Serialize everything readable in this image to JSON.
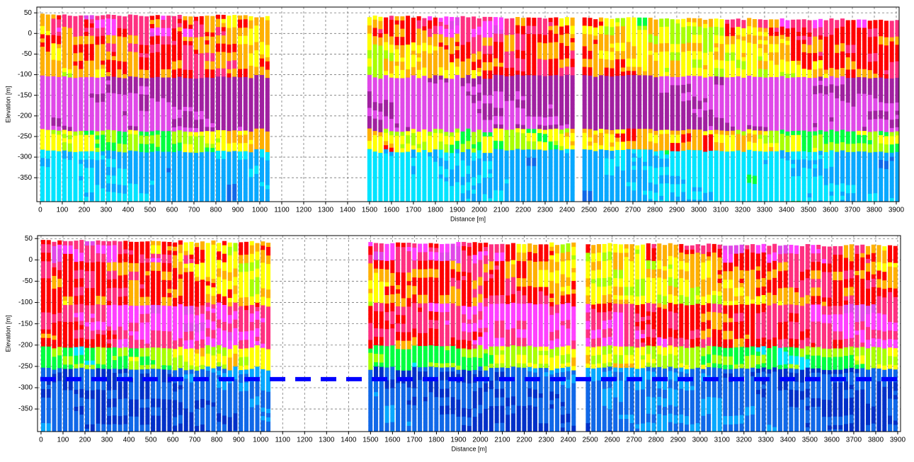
{
  "chart_data": [
    {
      "type": "section",
      "xlabel": "Distance [m]",
      "ylabel": "Elevation [m]",
      "xlim": [
        -16,
        3913
      ],
      "ylim": [
        -408,
        64
      ],
      "xticks": [
        0,
        100,
        200,
        300,
        400,
        500,
        600,
        700,
        800,
        900,
        1000,
        1100,
        1200,
        1300,
        1400,
        1500,
        1600,
        1700,
        1800,
        1900,
        2000,
        2100,
        2200,
        2300,
        2400,
        2500,
        2600,
        2700,
        2800,
        2900,
        3000,
        3100,
        3200,
        3300,
        3400,
        3500,
        3600,
        3700,
        3800,
        3900
      ],
      "yticks": [
        -350,
        -300,
        -250,
        -200,
        -150,
        -100,
        -50,
        0,
        50
      ],
      "grid": true,
      "sections": [
        [
          0,
          1050
        ],
        [
          1490,
          2430
        ],
        [
          2470,
          3900
        ]
      ]
    },
    {
      "type": "section",
      "xlabel": "Distance [m]",
      "ylabel": "Elevation [m]",
      "xlim": [
        -16,
        3913
      ],
      "ylim": [
        -403,
        57
      ],
      "xticks": [
        0,
        100,
        200,
        300,
        400,
        500,
        600,
        700,
        800,
        900,
        1000,
        1100,
        1200,
        1300,
        1400,
        1500,
        1600,
        1700,
        1800,
        1900,
        2000,
        2100,
        2200,
        2300,
        2400,
        2500,
        2600,
        2700,
        2800,
        2900,
        3000,
        3100,
        3200,
        3300,
        3400,
        3500,
        3600,
        3700,
        3800,
        3900
      ],
      "yticks": [
        -350,
        -300,
        -250,
        -200,
        -150,
        -100,
        -50,
        0,
        50
      ],
      "grid": true,
      "sections": [
        [
          0,
          1050
        ],
        [
          1490,
          2420
        ],
        [
          2480,
          3900
        ]
      ],
      "reference_line": {
        "y": -280,
        "color": "#0000ff",
        "style": "dashed"
      }
    }
  ]
}
